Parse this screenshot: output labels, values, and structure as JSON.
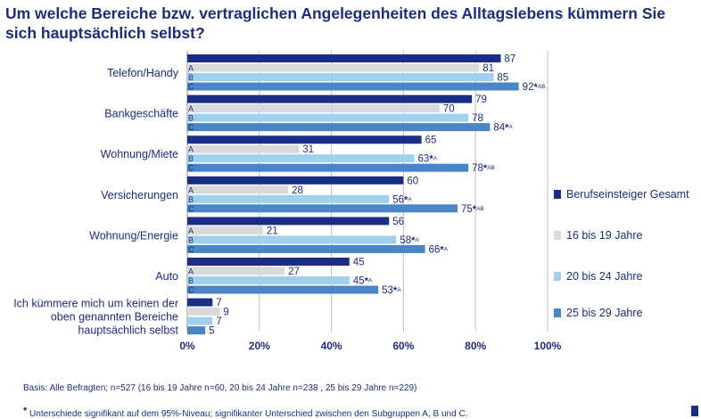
{
  "title": "Um welche Bereiche bzw. vertraglichen Angelegenheiten des Alltagslebens kümmern Sie sich hauptsächlich selbst?",
  "chart_data": {
    "type": "bar",
    "orientation": "horizontal",
    "categories": [
      "Telefon/Handy",
      "Bankgeschäfte",
      "Wohnung/Miete",
      "Versicherungen",
      "Wohnung/Energie",
      "Auto",
      "Ich kümmere mich um keinen der oben genannten Bereiche hauptsächlich selbst"
    ],
    "series": [
      {
        "name": "Berufseinsteiger Gesamt",
        "letter": "",
        "color": "#1b2e86",
        "values": [
          87,
          79,
          65,
          60,
          56,
          45,
          7
        ],
        "marks": [
          "",
          "",
          "",
          "",
          "",
          "",
          ""
        ]
      },
      {
        "name": "16 bis 19 Jahre",
        "letter": "A",
        "color": "#d9d9d9",
        "values": [
          81,
          70,
          31,
          28,
          21,
          27,
          9
        ],
        "marks": [
          "",
          "",
          "",
          "",
          "",
          "",
          ""
        ]
      },
      {
        "name": "20 bis 24 Jahre",
        "letter": "B",
        "color": "#9fd1ef",
        "values": [
          85,
          78,
          63,
          56,
          58,
          45,
          7
        ],
        "marks": [
          "",
          "",
          "*A",
          "*A",
          "*A",
          "*A",
          ""
        ]
      },
      {
        "name": "25 bis 29 Jahre",
        "letter": "C",
        "color": "#4a86c6",
        "values": [
          92,
          84,
          78,
          75,
          66,
          53,
          5
        ],
        "marks": [
          "*AB",
          "*A",
          "*AB",
          "*AB",
          "*A",
          "*A",
          ""
        ]
      }
    ],
    "xlim": [
      0,
      100
    ],
    "xticks": [
      "0%",
      "20%",
      "40%",
      "60%",
      "80%",
      "100%"
    ],
    "grid": true,
    "legend_position": "right",
    "xlabel": "",
    "ylabel": ""
  },
  "footnotes": {
    "basis": "Basis: Alle Befragten; n=527 (16 bis 19 Jahre n=60, 20 bis 24 Jahre n=238 , 25 bis 29 Jahre n=229)",
    "star": "*",
    "significance": " Unterschiede signifikant auf dem 95%-Niveau; signifikanter Unterschied zwischen den Subgruppen A, B und C."
  }
}
